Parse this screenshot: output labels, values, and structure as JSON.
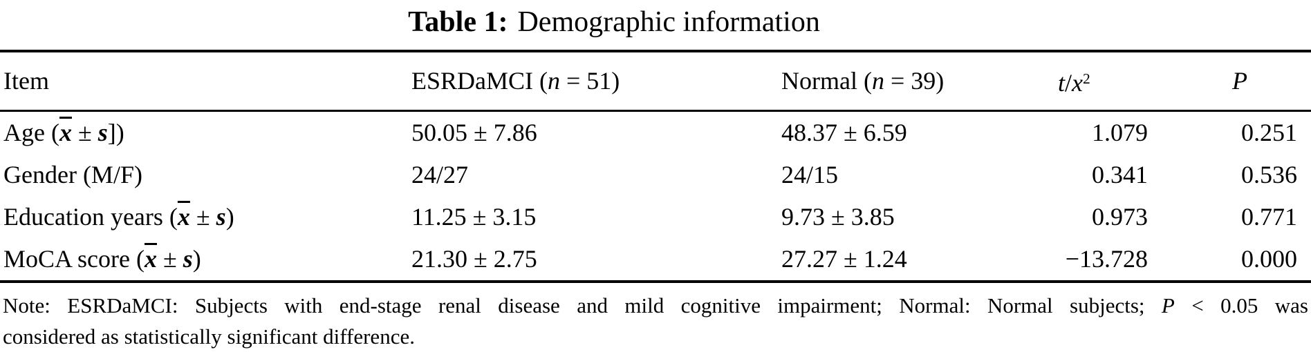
{
  "page": {
    "background_color": "#ffffff",
    "text_color": "#000000"
  },
  "title": {
    "label": "Table 1:",
    "text": "Demographic information"
  },
  "table": {
    "columns": [
      {
        "name": "item",
        "header": [
          [
            "Item"
          ]
        ]
      },
      {
        "name": "esrdamci-group",
        "header": [
          [
            "ESRDaMCI ("
          ],
          [
            "n",
            "it"
          ],
          [
            " = 51)"
          ]
        ]
      },
      {
        "name": "normal-group",
        "header": [
          [
            "Normal ("
          ],
          [
            "n",
            "it"
          ],
          [
            " = 39)"
          ]
        ]
      },
      {
        "name": "t-x2-statistic",
        "header": [
          [
            "t",
            "it"
          ],
          [
            "/"
          ],
          [
            "x",
            "it"
          ],
          [
            "2",
            "sup"
          ]
        ]
      },
      {
        "name": "p-value",
        "header": [
          [
            "P",
            "it"
          ]
        ]
      }
    ],
    "rows": [
      {
        "cells": [
          [
            [
              "Age ("
            ],
            [
              "x",
              "xbar"
            ],
            [
              " ± "
            ],
            [
              "s",
              "bi"
            ],
            [
              "])"
            ]
          ],
          [
            [
              "50.05 ± 7.86"
            ]
          ],
          [
            [
              "48.37 ± 6.59"
            ]
          ],
          [
            [
              "1.079"
            ]
          ],
          [
            [
              "0.251"
            ]
          ]
        ]
      },
      {
        "cells": [
          [
            [
              "Gender (M/F)"
            ]
          ],
          [
            [
              "24/27"
            ]
          ],
          [
            [
              "24/15"
            ]
          ],
          [
            [
              "0.341"
            ]
          ],
          [
            [
              "0.536"
            ]
          ]
        ]
      },
      {
        "cells": [
          [
            [
              "Education years ("
            ],
            [
              "x",
              "xbar"
            ],
            [
              " ± "
            ],
            [
              "s",
              "bi"
            ],
            [
              ")"
            ]
          ],
          [
            [
              "11.25 ± 3.15"
            ]
          ],
          [
            [
              "9.73 ± 3.85"
            ]
          ],
          [
            [
              "0.973"
            ]
          ],
          [
            [
              "0.771"
            ]
          ]
        ]
      },
      {
        "cells": [
          [
            [
              "MoCA score ("
            ],
            [
              "x",
              "xbar"
            ],
            [
              " ± "
            ],
            [
              "s",
              "bi"
            ],
            [
              ")"
            ]
          ],
          [
            [
              "21.30 ± 2.75"
            ]
          ],
          [
            [
              "27.27 ± 1.24"
            ]
          ],
          [
            [
              "−13.728"
            ]
          ],
          [
            [
              "0.000"
            ]
          ]
        ]
      }
    ]
  },
  "note": {
    "line1": [
      [
        "Note: ESRDaMCI: Subjects with end-stage renal disease and mild cognitive impairment; Normal: Normal subjects; "
      ],
      [
        "P",
        "it"
      ],
      [
        " < 0.05 was"
      ]
    ],
    "line2": [
      [
        "considered as statistically significant difference."
      ]
    ]
  }
}
